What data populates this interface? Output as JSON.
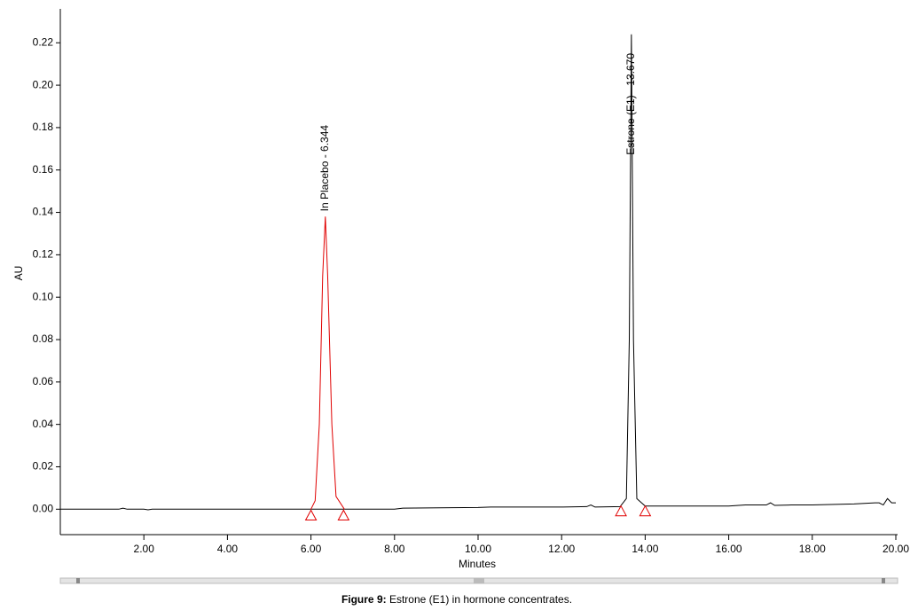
{
  "chart_data": {
    "type": "line",
    "xlabel": "Minutes",
    "ylabel": "AU",
    "xlim": [
      0,
      20
    ],
    "ylim": [
      -0.012,
      0.236
    ],
    "xticks": [
      {
        "value": 2,
        "label": "2.00"
      },
      {
        "value": 4,
        "label": "4.00"
      },
      {
        "value": 6,
        "label": "6.00"
      },
      {
        "value": 8,
        "label": "8.00"
      },
      {
        "value": 10,
        "label": "10.00"
      },
      {
        "value": 12,
        "label": "12.00"
      },
      {
        "value": 14,
        "label": "14.00"
      },
      {
        "value": 16,
        "label": "16.00"
      },
      {
        "value": 18,
        "label": "18.00"
      },
      {
        "value": 20,
        "label": "20.00"
      }
    ],
    "yticks": [
      {
        "value": 0,
        "label": "0.00"
      },
      {
        "value": 0.02,
        "label": "0.02"
      },
      {
        "value": 0.04,
        "label": "0.04"
      },
      {
        "value": 0.06,
        "label": "0.06"
      },
      {
        "value": 0.08,
        "label": "0.08"
      },
      {
        "value": 0.1,
        "label": "0.10"
      },
      {
        "value": 0.12,
        "label": "0.12"
      },
      {
        "value": 0.14,
        "label": "0.14"
      },
      {
        "value": 0.16,
        "label": "0.16"
      },
      {
        "value": 0.18,
        "label": "0.18"
      },
      {
        "value": 0.2,
        "label": "0.20"
      },
      {
        "value": 0.22,
        "label": "0.22"
      }
    ],
    "series": [
      {
        "color": "#000000",
        "x": [
          0,
          1.4,
          1.5,
          1.6,
          2.0,
          2.1,
          2.2,
          4,
          6,
          8,
          8.2,
          10,
          10.3,
          12,
          12.6,
          12.7,
          12.8,
          13.4,
          13.55,
          13.62,
          13.67,
          13.72,
          13.8,
          14.0,
          15,
          16,
          16.4,
          16.9,
          17.0,
          17.1,
          17.5,
          18,
          19,
          19.5,
          19.6,
          19.7,
          19.8,
          19.9,
          20
        ],
        "values": [
          0,
          0,
          0.0005,
          0,
          0,
          -0.0003,
          0,
          0,
          0,
          0,
          0.0005,
          0.0008,
          0.001,
          0.001,
          0.0012,
          0.002,
          0.001,
          0.0012,
          0.005,
          0.08,
          0.224,
          0.08,
          0.005,
          0.0015,
          0.0015,
          0.0015,
          0.002,
          0.002,
          0.003,
          0.0018,
          0.002,
          0.002,
          0.0025,
          0.003,
          0.003,
          0.002,
          0.005,
          0.003,
          0.003
        ]
      },
      {
        "color": "#e00000",
        "x": [
          6.0,
          6.1,
          6.2,
          6.28,
          6.344,
          6.4,
          6.5,
          6.6,
          6.8
        ],
        "values": [
          0,
          0.004,
          0.04,
          0.11,
          0.138,
          0.11,
          0.04,
          0.006,
          0
        ]
      }
    ],
    "markers": {
      "color": "#e00000",
      "x": [
        6.0,
        6.78,
        13.42,
        14.0
      ],
      "values": [
        -0.003,
        -0.003,
        -0.001,
        -0.001
      ]
    },
    "annotations": [
      {
        "text": "In Placebo - 6.344",
        "x": 6.344,
        "y": 0.138
      },
      {
        "text": "Estrone (E1) - 13.670",
        "x": 13.67,
        "y": 0.224
      }
    ]
  },
  "caption": {
    "label": "Figure 9:",
    "text": "Estrone (E1) in hormone concentrates."
  }
}
